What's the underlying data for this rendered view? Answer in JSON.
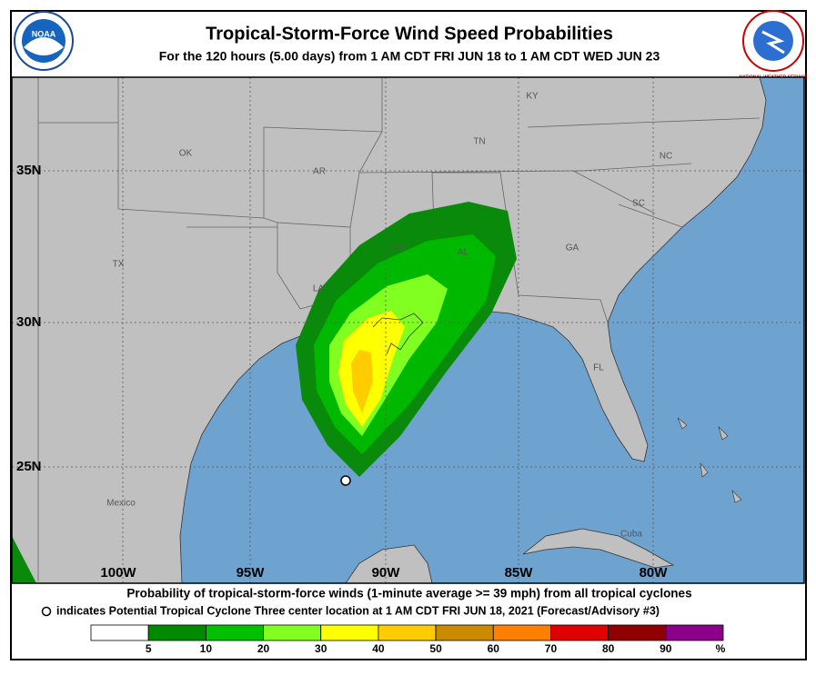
{
  "header": {
    "title": "Tropical-Storm-Force Wind Speed Probabilities",
    "subtitle": "For the 120 hours (5.00 days) from 1 AM CDT FRI JUN 18 to 1 AM CDT WED JUN 23",
    "logo_left": "NOAA",
    "logo_right": "NATIONAL WEATHER SERVICE"
  },
  "map": {
    "lat_labels": [
      "35N",
      "30N",
      "25N"
    ],
    "lon_labels": [
      "100W",
      "95W",
      "90W",
      "85W",
      "80W"
    ],
    "places": [
      "KY",
      "TN",
      "OK",
      "AR",
      "NC",
      "SC",
      "MS",
      "AL",
      "GA",
      "TX",
      "LA",
      "FL",
      "Mexico",
      "Cuba"
    ]
  },
  "footer": {
    "line1": "Probability of tropical-storm-force winds (1-minute average >= 39 mph) from all tropical cyclones",
    "line2": "indicates Potential Tropical Cyclone Three center location at 1 AM CDT FRI JUN 18, 2021 (Forecast/Advisory #3)"
  },
  "legend": {
    "colors": [
      "#ffffff",
      "#008a00",
      "#00c000",
      "#80ff20",
      "#ffff00",
      "#ffcc00",
      "#cc8a00",
      "#ff8000",
      "#e00000",
      "#900000",
      "#8a008a"
    ],
    "ticks": [
      5,
      10,
      20,
      30,
      40,
      50,
      60,
      70,
      80,
      90
    ],
    "unit": "%"
  }
}
